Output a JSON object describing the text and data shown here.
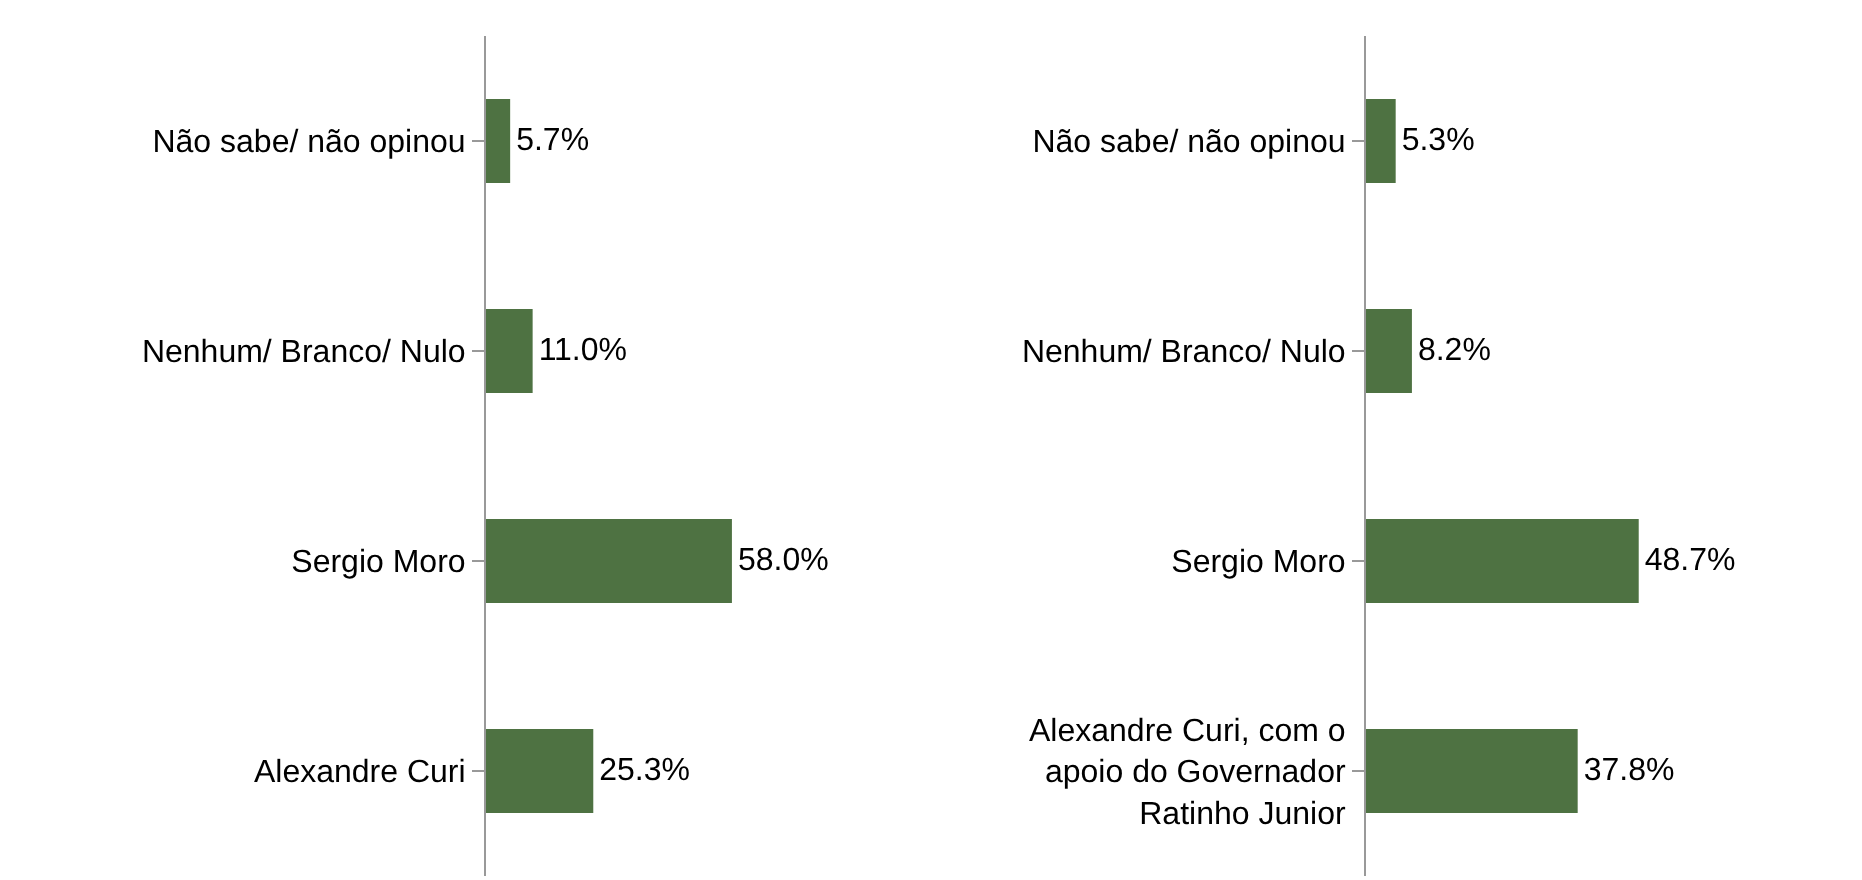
{
  "chart_data": [
    {
      "type": "bar",
      "orientation": "horizontal",
      "categories": [
        "Não sabe/ não opinou",
        "Nenhum/ Branco/ Nulo",
        "Sergio Moro",
        "Alexandre Curi"
      ],
      "values": [
        5.7,
        11.0,
        58.0,
        25.3
      ],
      "value_labels": [
        "5.7%",
        "11.0%",
        "58.0%",
        "25.3%"
      ],
      "color": "#4e7242",
      "grid": false,
      "tick_labels": "y"
    },
    {
      "type": "bar",
      "orientation": "horizontal",
      "categories": [
        "Não sabe/ não opinou",
        "Nenhum/ Branco/ Nulo",
        "Sergio Moro",
        "Alexandre Curi, com o apoio do Governador Ratinho Junior"
      ],
      "values": [
        5.3,
        8.2,
        48.7,
        37.8
      ],
      "value_labels": [
        "5.3%",
        "8.2%",
        "48.7%",
        "37.8%"
      ],
      "color": "#4e7242",
      "grid": false,
      "tick_labels": "y"
    }
  ]
}
